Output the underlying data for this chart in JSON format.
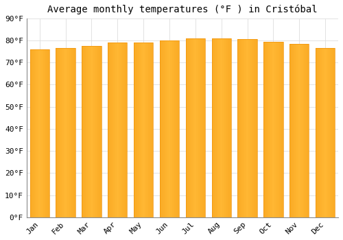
{
  "title": "Average monthly temperatures (°F ) in Cristóbal",
  "months": [
    "Jan",
    "Feb",
    "Mar",
    "Apr",
    "May",
    "Jun",
    "Jul",
    "Aug",
    "Sep",
    "Oct",
    "Nov",
    "Dec"
  ],
  "values": [
    76.0,
    76.5,
    77.5,
    79.0,
    79.0,
    80.0,
    81.0,
    81.0,
    80.5,
    79.5,
    78.5,
    76.5
  ],
  "bar_color_center": "#FFB733",
  "bar_color_edge": "#F0930A",
  "background_color": "#FFFFFF",
  "grid_color": "#DDDDDD",
  "ylim": [
    0,
    90
  ],
  "yticks": [
    0,
    10,
    20,
    30,
    40,
    50,
    60,
    70,
    80,
    90
  ],
  "title_fontsize": 10,
  "tick_fontsize": 8,
  "bar_width": 0.75
}
